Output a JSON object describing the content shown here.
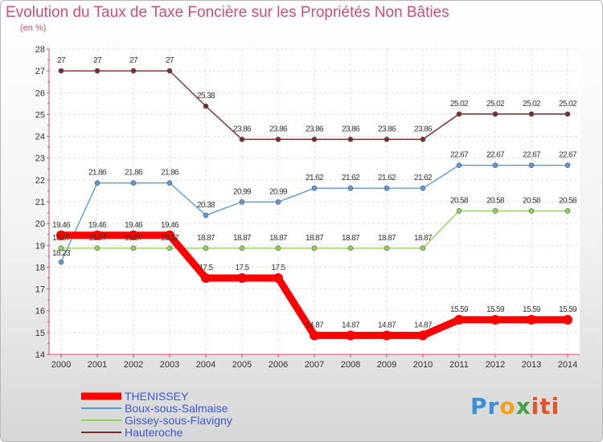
{
  "chart_data": {
    "type": "line",
    "title": "Evolution du Taux de Taxe Foncière sur les Propriétés Non Bâties",
    "subtitle": "(en %)",
    "categories": [
      "2000",
      "2001",
      "2002",
      "2003",
      "2004",
      "2005",
      "2006",
      "2007",
      "2008",
      "2009",
      "2010",
      "2011",
      "2012",
      "2013",
      "2014"
    ],
    "ylim": [
      14,
      28
    ],
    "yticks": [
      14,
      15,
      16,
      17,
      18,
      19,
      20,
      21,
      22,
      23,
      24,
      25,
      26,
      27,
      28
    ],
    "grid": true,
    "legend_position": "bottom-left",
    "series": [
      {
        "name": "THENISSEY",
        "color": "#ff0000",
        "emphasis": true,
        "values": [
          19.46,
          19.46,
          19.46,
          19.46,
          17.5,
          17.5,
          17.5,
          14.87,
          14.87,
          14.87,
          14.87,
          15.59,
          15.59,
          15.59,
          15.59
        ],
        "labels": [
          "19.46",
          "19.46",
          "19.46",
          "19.46",
          "17.5",
          "17.5",
          "17.5",
          "14.87",
          "14.87",
          "14.87",
          "14.87",
          "15.59",
          "15.59",
          "15.59",
          "15.59"
        ]
      },
      {
        "name": "Boux-sous-Salmaise",
        "color": "#5b9bd5",
        "values": [
          18.23,
          21.86,
          21.86,
          21.86,
          20.38,
          20.99,
          20.99,
          21.62,
          21.62,
          21.62,
          21.62,
          22.67,
          22.67,
          22.67,
          22.67
        ],
        "labels": [
          "18.23",
          "21.86",
          "21.86",
          "21.86",
          "20.38",
          "20.99",
          "20.99",
          "21.62",
          "21.62",
          "21.62",
          "21.62",
          "22.67",
          "22.67",
          "22.67",
          "22.67"
        ]
      },
      {
        "name": "Gissey-sous-Flavigny",
        "color": "#8fd35a",
        "values": [
          18.87,
          18.87,
          18.87,
          18.87,
          18.87,
          18.87,
          18.87,
          18.87,
          18.87,
          18.87,
          18.87,
          20.58,
          20.58,
          20.58,
          20.58
        ],
        "labels": [
          "18.87",
          "18.87",
          "18.87",
          "18.87",
          "18.87",
          "18.87",
          "18.87",
          "18.87",
          "18.87",
          "18.87",
          "18.87",
          "20.58",
          "20.58",
          "20.58",
          "20.58"
        ]
      },
      {
        "name": "Hauteroche",
        "color": "#7b2c2c",
        "values": [
          27,
          27,
          27,
          27,
          25.38,
          23.86,
          23.86,
          23.86,
          23.86,
          23.86,
          23.86,
          25.02,
          25.02,
          25.02,
          25.02
        ],
        "labels": [
          "27",
          "27",
          "27",
          "27",
          "25.38",
          "23.86",
          "23.86",
          "23.86",
          "23.86",
          "23.86",
          "23.86",
          "25.02",
          "25.02",
          "25.02",
          "25.02"
        ]
      }
    ]
  },
  "logo": {
    "p1": "Pr",
    "p2": "o",
    "p3": "x",
    "p4": "iti"
  }
}
